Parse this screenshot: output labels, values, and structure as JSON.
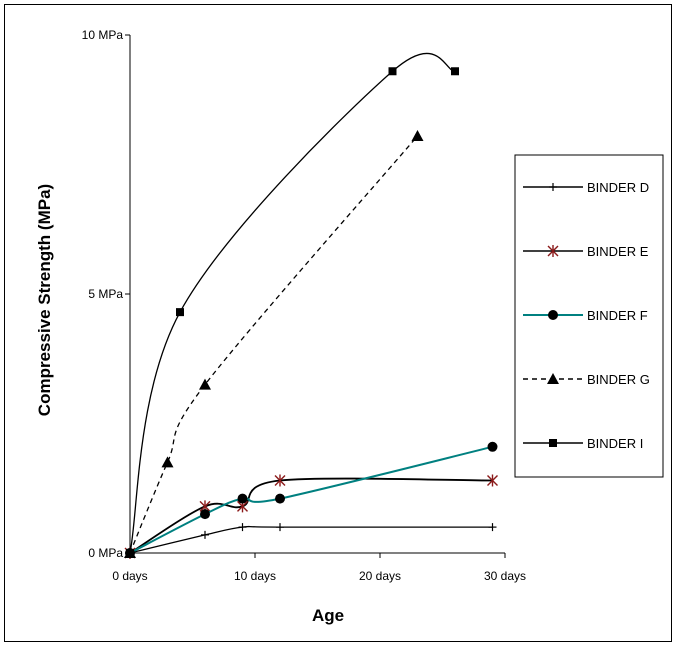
{
  "chart_data": {
    "type": "line",
    "xlabel": "Age",
    "ylabel": "Compressive Strength (MPa)",
    "xlim": [
      0,
      30
    ],
    "ylim": [
      0,
      10
    ],
    "x_ticks": [
      {
        "value": 0,
        "label": "0 days"
      },
      {
        "value": 10,
        "label": "10 days"
      },
      {
        "value": 20,
        "label": "20 days"
      },
      {
        "value": 30,
        "label": "30 days"
      }
    ],
    "y_ticks": [
      {
        "value": 0,
        "label": "0 MPa"
      },
      {
        "value": 5,
        "label": "5 MPa"
      },
      {
        "value": 10,
        "label": "10 MPa"
      }
    ],
    "grid": false,
    "legend_position": "right",
    "series": [
      {
        "name": "BINDER D",
        "marker": "plus",
        "color": "#000000",
        "dash": "solid",
        "points": [
          [
            0,
            0
          ],
          [
            6,
            0.35
          ],
          [
            9,
            0.5
          ],
          [
            12,
            0.5
          ],
          [
            29,
            0.5
          ]
        ]
      },
      {
        "name": "BINDER E",
        "marker": "star",
        "color": "#000000",
        "marker_color": "#8b1a1a",
        "dash": "solid",
        "points": [
          [
            0,
            0
          ],
          [
            6,
            0.9
          ],
          [
            9,
            0.9
          ],
          [
            12,
            1.4
          ],
          [
            29,
            1.4
          ]
        ]
      },
      {
        "name": "BINDER F",
        "marker": "circle",
        "color": "#008080",
        "dash": "solid",
        "points": [
          [
            0,
            0
          ],
          [
            6,
            0.75
          ],
          [
            9,
            1.05
          ],
          [
            12,
            1.05
          ],
          [
            29,
            2.05
          ]
        ]
      },
      {
        "name": "BINDER G",
        "marker": "triangle",
        "color": "#000000",
        "dash": "dashed",
        "points": [
          [
            0,
            0
          ],
          [
            3,
            1.75
          ],
          [
            6,
            3.25
          ],
          [
            23,
            8.05
          ]
        ]
      },
      {
        "name": "BINDER I",
        "marker": "square",
        "color": "#000000",
        "dash": "solid",
        "points": [
          [
            0,
            0
          ],
          [
            4,
            4.65
          ],
          [
            21,
            9.3
          ],
          [
            26,
            9.3
          ]
        ]
      }
    ]
  }
}
